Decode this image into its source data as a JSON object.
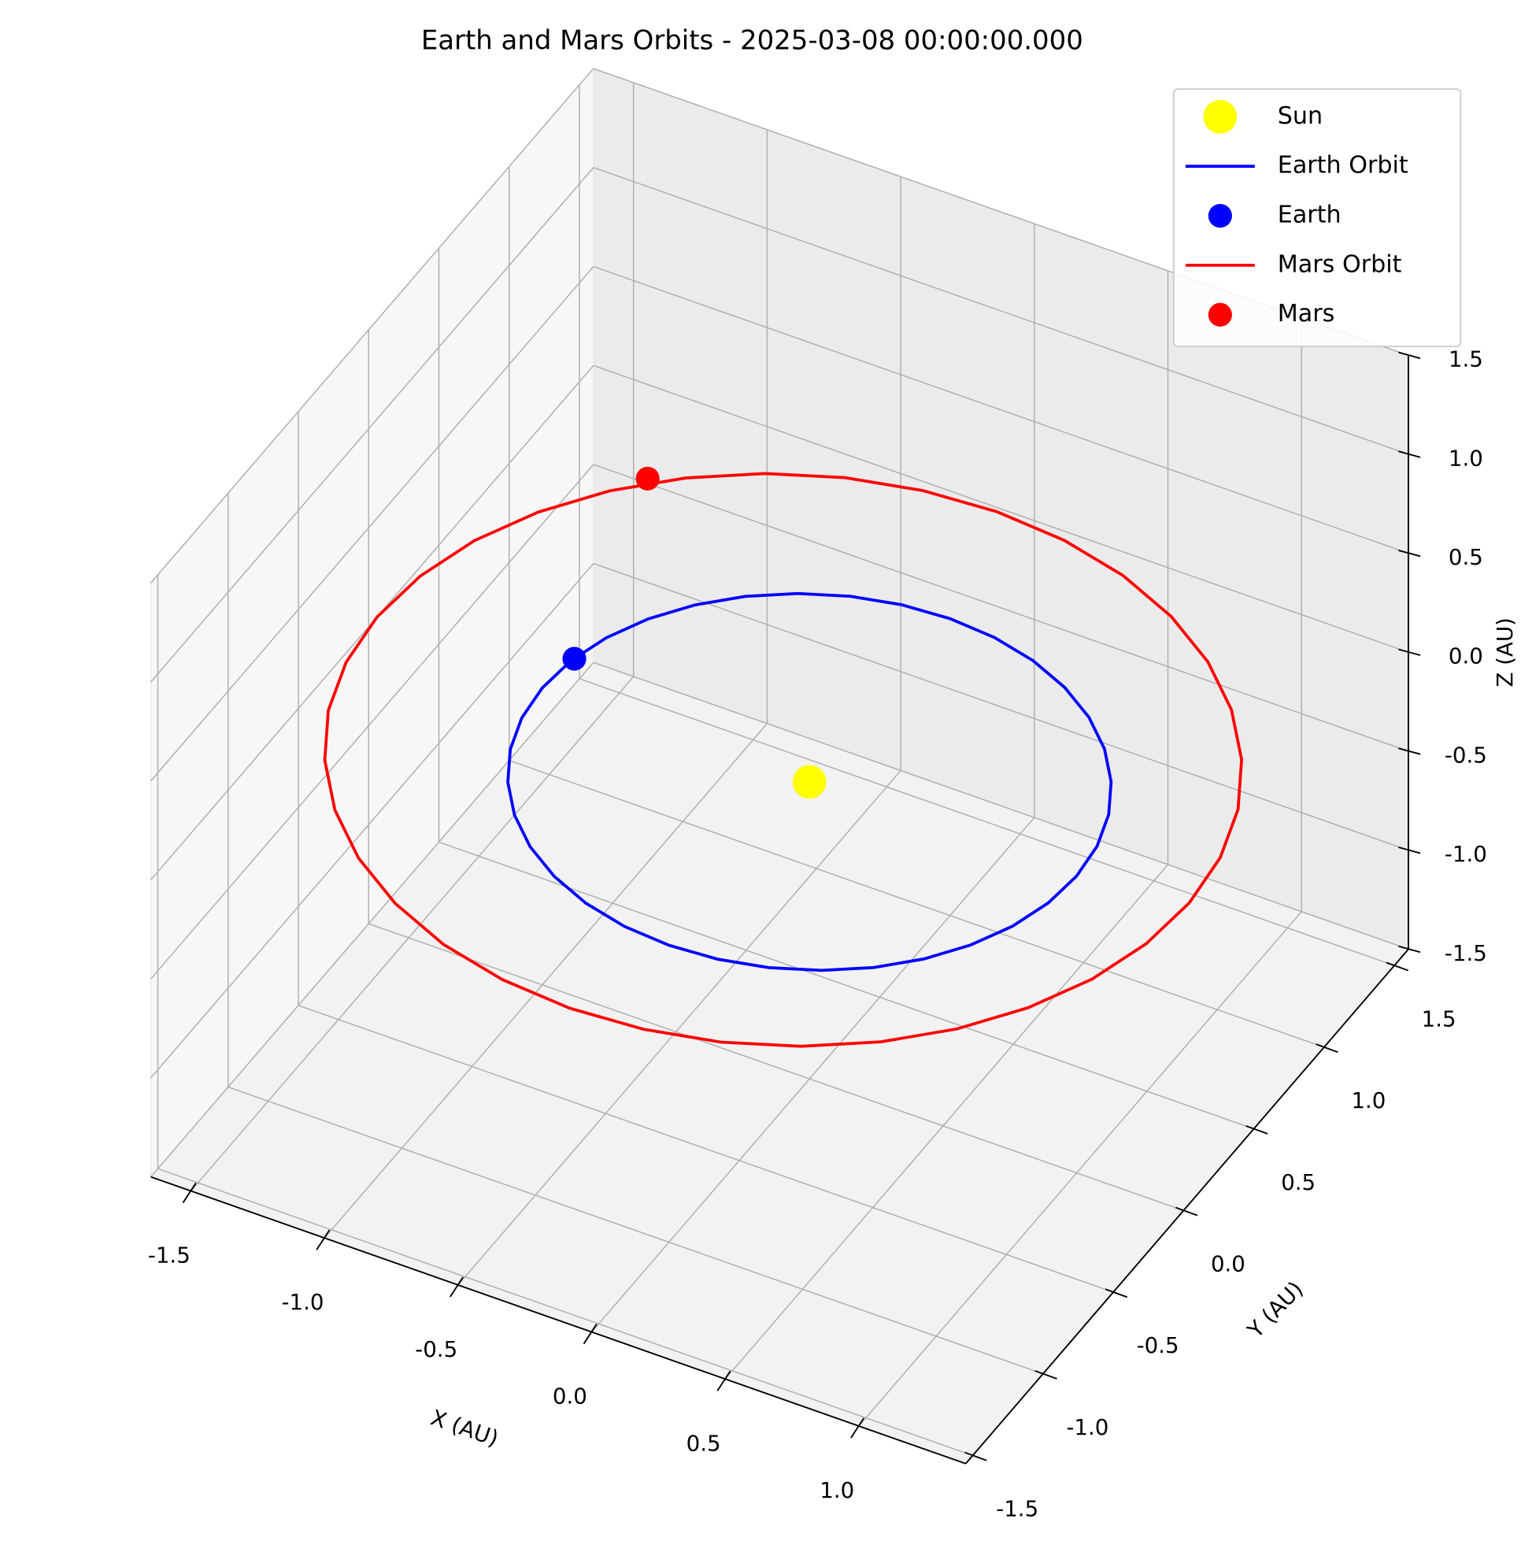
{
  "chart_data": {
    "type": "scatter3d",
    "title": "Earth and Mars Orbits - 2025-03-08 00:00:00.000",
    "xlabel": "X (AU)",
    "ylabel": "Y (AU)",
    "zlabel": "Z (AU)",
    "xlim": [
      -1.65,
      1.4
    ],
    "ylim": [
      -1.55,
      1.6
    ],
    "zlim": [
      -1.5,
      1.5
    ],
    "xticks": [
      -1.5,
      {
        "value": -1.0,
        "label": "-1.0"
      },
      -0.5,
      {
        "value": 0.0,
        "label": "0.0"
      },
      0.5,
      {
        "value": 1.0,
        "label": "1.0"
      }
    ],
    "yticks": [
      -1.5,
      {
        "value": -1.0,
        "label": "-1.0"
      },
      -0.5,
      {
        "value": 0.0,
        "label": "0.0"
      },
      0.5,
      {
        "value": 1.0,
        "label": "1.0"
      },
      1.5
    ],
    "zticks": [
      -1.5,
      {
        "value": -1.0,
        "label": "-1.0"
      },
      -0.5,
      {
        "value": 0.0,
        "label": "0.0"
      },
      0.5,
      {
        "value": 1.0,
        "label": "1.0"
      },
      1.5
    ],
    "grid": true,
    "legend": "upper right",
    "series": [
      {
        "name": "Sun",
        "kind": "scatter",
        "color": "#ffff00",
        "x": [
          0
        ],
        "y": [
          0
        ],
        "z": [
          0
        ]
      },
      {
        "name": "Earth Orbit",
        "kind": "line",
        "color": "#0000ff",
        "x": [
          1,
          0.985,
          0.94,
          0.866,
          0.766,
          0.643,
          0.5,
          0.342,
          0.174,
          0,
          -0.174,
          -0.342,
          -0.5,
          -0.643,
          -0.766,
          -0.866,
          -0.94,
          -0.985,
          -1,
          -0.985,
          -0.94,
          -0.866,
          -0.766,
          -0.643,
          -0.5,
          -0.342,
          -0.174,
          0,
          0.174,
          0.342,
          0.5,
          0.643,
          0.766,
          0.866,
          0.94,
          0.985,
          1
        ],
        "y": [
          0,
          0.174,
          0.342,
          0.5,
          0.643,
          0.766,
          0.866,
          0.94,
          0.985,
          1,
          0.985,
          0.94,
          0.866,
          0.766,
          0.643,
          0.5,
          0.342,
          0.174,
          0,
          -0.174,
          -0.342,
          -0.5,
          -0.643,
          -0.766,
          -0.866,
          -0.94,
          -0.985,
          -1,
          -0.985,
          -0.94,
          -0.866,
          -0.766,
          -0.643,
          -0.5,
          -0.342,
          -0.174,
          0
        ],
        "z": [
          0,
          0,
          0,
          0,
          0,
          0,
          0,
          0,
          0,
          0,
          0,
          0,
          0,
          0,
          0,
          0,
          0,
          0,
          0,
          0,
          0,
          0,
          0,
          0,
          0,
          0,
          0,
          0,
          0,
          0,
          0,
          0,
          0,
          0,
          0,
          0,
          0
        ]
      },
      {
        "name": "Earth",
        "kind": "scatter",
        "color": "#0000ff",
        "x": [
          -0.98
        ],
        "y": [
          0.19
        ],
        "z": [
          0
        ]
      },
      {
        "name": "Mars Orbit",
        "kind": "line",
        "color": "#ff0000",
        "x": [
          1.39,
          1.367,
          1.299,
          1.186,
          1.034,
          0.847,
          0.63,
          0.39,
          0.134,
          -0.13,
          -0.394,
          -0.65,
          -0.89,
          -1.107,
          -1.294,
          -1.446,
          -1.559,
          -1.627,
          -1.65,
          -1.627,
          -1.559,
          -1.446,
          -1.294,
          -1.107,
          -0.89,
          -0.65,
          -0.394,
          -0.13,
          0.134,
          0.39,
          0.63,
          0.847,
          1.034,
          1.186,
          1.299,
          1.367,
          1.39
        ],
        "y": [
          0.06,
          0.324,
          0.58,
          0.82,
          1.037,
          1.224,
          1.376,
          1.489,
          1.557,
          1.58,
          1.557,
          1.489,
          1.376,
          1.224,
          1.037,
          0.82,
          0.58,
          0.324,
          0.06,
          -0.204,
          -0.46,
          -0.7,
          -0.917,
          -1.104,
          -1.256,
          -1.369,
          -1.437,
          -1.46,
          -1.437,
          -1.369,
          -1.256,
          -1.104,
          -0.917,
          -0.7,
          -0.46,
          -0.204,
          0.06
        ],
        "z": [
          0,
          0,
          0,
          0,
          0,
          0,
          0,
          0,
          0,
          0,
          0,
          0,
          0,
          0,
          0,
          0,
          0,
          0,
          0,
          0,
          0,
          0,
          0,
          0,
          0,
          0,
          0,
          0,
          0,
          0,
          0,
          0,
          0,
          0,
          0,
          0,
          0
        ]
      },
      {
        "name": "Mars",
        "kind": "scatter",
        "color": "#ff0000",
        "x": [
          -1.2
        ],
        "y": [
          1.13
        ],
        "z": [
          0.03
        ]
      }
    ]
  }
}
